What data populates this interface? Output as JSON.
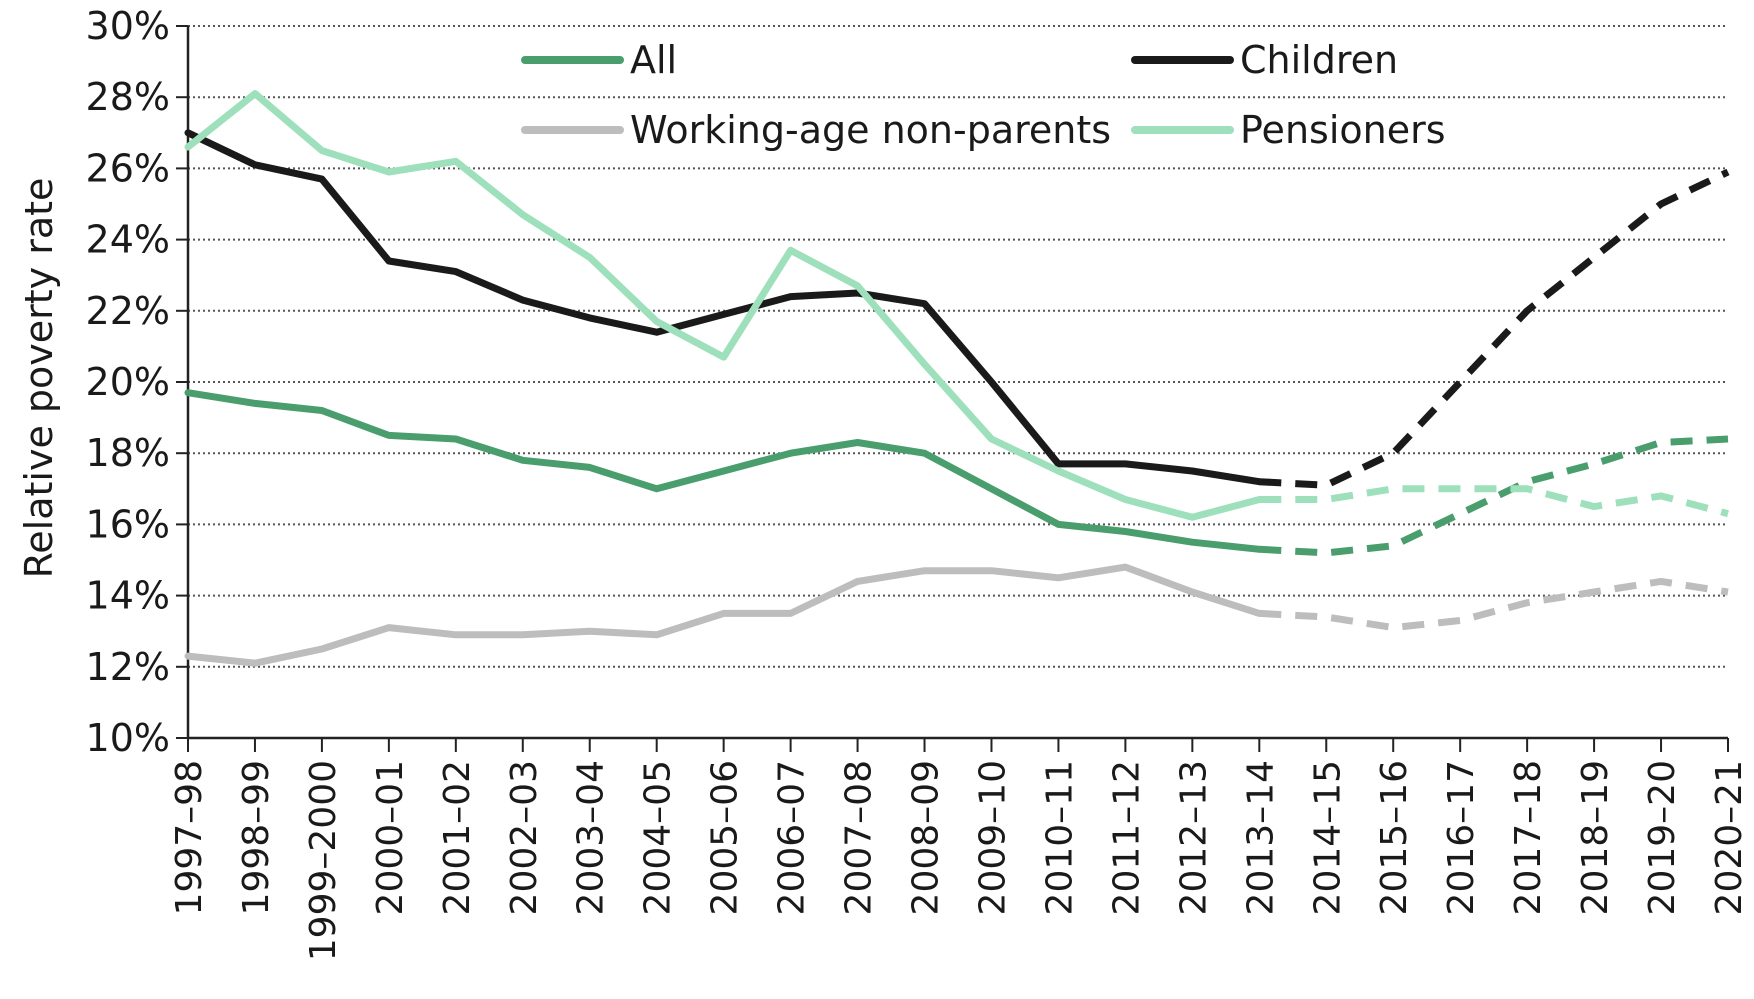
{
  "chart_data": {
    "type": "line",
    "ylabel": "Relative poverty rate",
    "xlabel": "",
    "ylim": [
      10,
      30
    ],
    "ytick_step": 2,
    "ytick_suffix": "%",
    "grid": "horizontal-dotted",
    "legend": "top-inside",
    "categories": [
      "1997–98",
      "1998–99",
      "1999–2000",
      "2000–01",
      "2001–02",
      "2002–03",
      "2003–04",
      "2004–05",
      "2005–06",
      "2006–07",
      "2007–08",
      "2008–09",
      "2009–10",
      "2010–11",
      "2011–12",
      "2012–13",
      "2013–14",
      "2014–15",
      "2015–16",
      "2016–17",
      "2017–18",
      "2018–19",
      "2019–20",
      "2020–21"
    ],
    "observed_until_index": 16,
    "projection_style": "dashed",
    "series": [
      {
        "name": "All",
        "color": "#4a9e6e",
        "values": [
          19.7,
          19.4,
          19.2,
          18.5,
          18.4,
          17.8,
          17.6,
          17.0,
          17.5,
          18.0,
          18.3,
          18.0,
          17.0,
          16.0,
          15.8,
          15.5,
          15.3,
          15.2,
          15.4,
          16.3,
          17.2,
          17.7,
          18.3,
          18.4
        ]
      },
      {
        "name": "Children",
        "color": "#1a1a1a",
        "values": [
          27.0,
          26.1,
          25.7,
          23.4,
          23.1,
          22.3,
          21.8,
          21.4,
          21.9,
          22.4,
          22.5,
          22.2,
          20.0,
          17.7,
          17.7,
          17.5,
          17.2,
          17.1,
          18.0,
          20.0,
          22.0,
          23.5,
          25.0,
          25.9
        ]
      },
      {
        "name": "Working-age non-parents",
        "color": "#bdbdbd",
        "values": [
          12.3,
          12.1,
          12.5,
          13.1,
          12.9,
          12.9,
          13.0,
          12.9,
          13.5,
          13.5,
          14.4,
          14.7,
          14.7,
          14.5,
          14.8,
          14.1,
          13.5,
          13.4,
          13.1,
          13.3,
          13.8,
          14.1,
          14.4,
          14.1
        ]
      },
      {
        "name": "Pensioners",
        "color": "#9de0bb",
        "values": [
          26.6,
          28.1,
          26.5,
          25.9,
          26.2,
          24.7,
          23.5,
          21.7,
          20.7,
          23.7,
          22.7,
          20.5,
          18.4,
          17.5,
          16.7,
          16.2,
          16.7,
          16.7,
          17.0,
          17.0,
          17.0,
          16.5,
          16.8,
          16.3
        ]
      }
    ]
  }
}
